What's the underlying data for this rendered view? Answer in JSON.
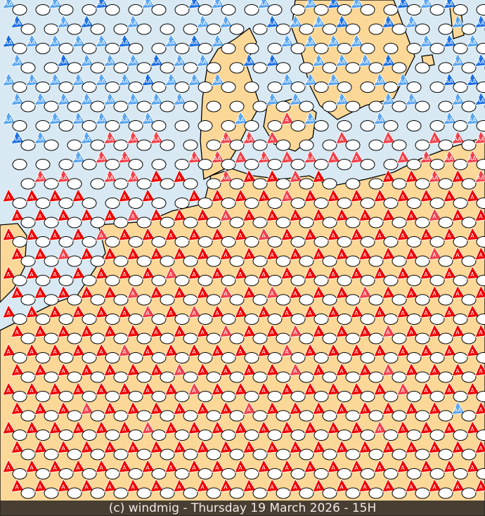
{
  "footer": {
    "caption": "(c) windmig - Thursday 19 March 2026 - 15H"
  },
  "colors": {
    "sea": "#d8e9f3",
    "land": "#fcd898",
    "border": "#000000",
    "ellipse": "#ffffff",
    "blue_strong": "#1c6fe0",
    "blue_light": "#5aa5ee",
    "red_strong": "#ee0000",
    "red_light": "#f0404a"
  },
  "marker_labels": {
    "B": "AA",
    "b": "AA",
    "R": "A",
    "p": "A",
    "q": "AA"
  },
  "marker_legend": {
    "B": "blue-strong",
    "b": "blue-light",
    "R": "red-strong",
    "p": "red-light",
    ".": "ellipse-only"
  },
  "marker_rows": [
    "b.b.B.b.Bb.b.bBb.BbB.",
    "B.bB.b..bb.BbbB.Bb.bB",
    "BbbbbB.bBb..bbbb..bBb",
    "b.BbbbBbb.BB.bbbB..bB",
    "bbbbbbBbbb..bbb.bb.BB",
    "bbbbbbbb...bb.b.bb.bB",
    "b.bbbbb...b.pb..b..bb",
    "Bb.bqqq..qqp..p.p.pqq",
    "...bqq..qqpqpqpp.pqqq",
    ".qq.qqRR.qRRpR..RRqRq",
    "RRRR.RR.RRRRpRRRRRRRR",
    "RRRRRpRRRpRRRRRRRRpRR",
    "RRRRpRRRRRRpRRRRRRRRR",
    "RRpRRRRRRRRRRRRRRRpRR",
    "RRRRRRRpRRRRRRRRRRRRR",
    "RRRRRpRRRpRpRRRpRRRRR",
    "RRRRRRpRpRRRRRRRRRRRR",
    "RRRRRRRRRpRRpRRRpRRRR",
    "RRRRRpRRRRRRpRRRRRRRR",
    "RRRRRRRpRRRRpRRRpRRRR",
    "RRRRRRRRpRRRRRRRRpRRR",
    "RRRpRRRRRRpRRRRRRRRbR",
    "RRRRRRpRRRRRRRRRpRRRR",
    "RRRRRRRRRRRRRRRRRRRRR",
    "RRRRRRRRRRRRRRRRRRRRR",
    "RRRRRRRRRRRRRRRRRRRRR"
  ]
}
